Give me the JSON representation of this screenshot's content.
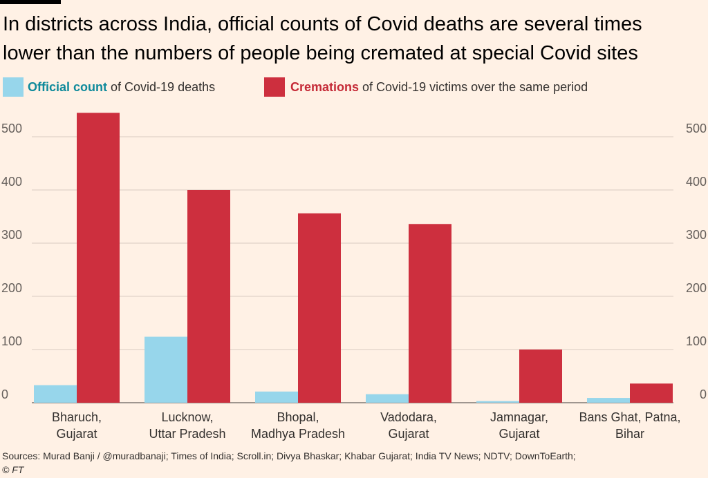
{
  "title": {
    "line1": "In districts across India, official counts of Covid deaths are several times",
    "line2": "lower than the numbers of people being cremated at special Covid sites"
  },
  "legend": {
    "official_bold": "Official count",
    "official_rest": " of Covid-19 deaths",
    "cremations_bold": "Cremations",
    "cremations_rest": " of Covid-19 victims over the same period"
  },
  "colors": {
    "official": "#97D6EB",
    "cremations": "#CD2F3E",
    "official_text": "#0F8A9B",
    "cremations_text": "#C52A37",
    "background": "#FFF1E5",
    "grid": "#D9CCC1"
  },
  "chart_data": {
    "type": "bar",
    "categories": [
      [
        "Bharuch,",
        "Gujarat"
      ],
      [
        "Lucknow,",
        "Uttar Pradesh"
      ],
      [
        "Bhopal,",
        "Madhya Pradesh"
      ],
      [
        "Vadodara,",
        "Gujarat"
      ],
      [
        "Jamnagar,",
        "Gujarat"
      ],
      [
        "Bans Ghat, Patna,",
        "Bihar"
      ]
    ],
    "series": [
      {
        "name": "Official count of Covid-19 deaths",
        "values": [
          33,
          124,
          21,
          16,
          3,
          9
        ]
      },
      {
        "name": "Cremations of Covid-19 victims over the same period",
        "values": [
          545,
          400,
          356,
          336,
          100,
          36
        ]
      }
    ],
    "ylim": [
      0,
      545
    ],
    "yticks": [
      0,
      100,
      200,
      300,
      400,
      500
    ],
    "grid": true,
    "legend_position": "top-left"
  },
  "source": {
    "text": "Sources: Murad Banji / @muradbanaji; Times of India; Scroll.in; Divya Bhaskar; Khabar Gujarat; India TV News; NDTV; DownToEarth;",
    "copyright": "© FT"
  }
}
